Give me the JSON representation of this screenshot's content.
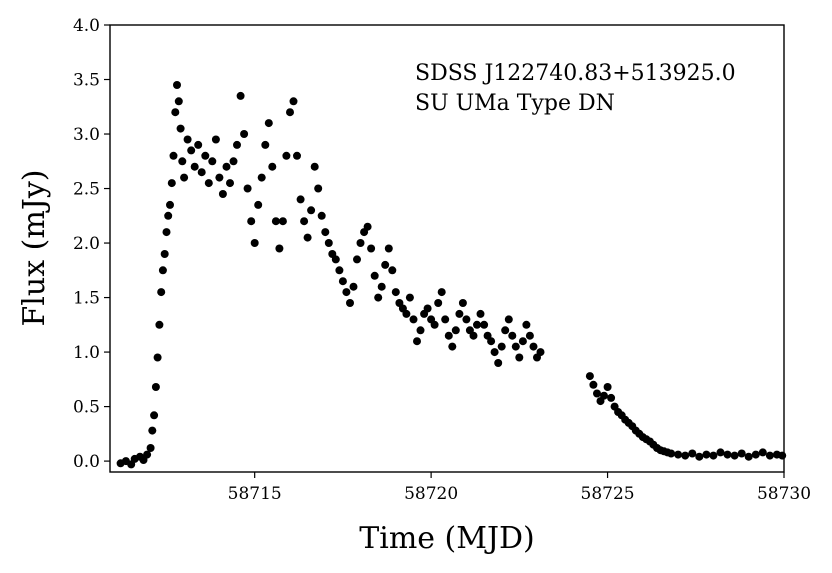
{
  "chart_data": {
    "type": "scatter",
    "title": "",
    "xlabel": "Time (MJD)",
    "ylabel": "Flux (mJy)",
    "xlim": [
      58710.9,
      58730.0
    ],
    "ylim": [
      -0.1,
      4.0
    ],
    "xticks": [
      58715,
      58720,
      58725,
      58730
    ],
    "yticks": [
      0.0,
      0.5,
      1.0,
      1.5,
      2.0,
      2.5,
      3.0,
      3.5,
      4.0
    ],
    "xtick_labels": [
      "58715",
      "58720",
      "58725",
      "58730"
    ],
    "ytick_labels": [
      "0.0",
      "0.5",
      "1.0",
      "1.5",
      "2.0",
      "2.5",
      "3.0",
      "3.5",
      "4.0"
    ],
    "grid": false,
    "annotations": [
      "SDSS J122740.83+513925.0",
      "SU UMa Type DN"
    ],
    "marker_color": "#000000",
    "points": [
      [
        58711.2,
        -0.02
      ],
      [
        58711.35,
        0.0
      ],
      [
        58711.5,
        -0.03
      ],
      [
        58711.6,
        0.02
      ],
      [
        58711.75,
        0.04
      ],
      [
        58711.85,
        0.01
      ],
      [
        58711.95,
        0.06
      ],
      [
        58712.05,
        0.12
      ],
      [
        58712.1,
        0.28
      ],
      [
        58712.15,
        0.42
      ],
      [
        58712.2,
        0.68
      ],
      [
        58712.25,
        0.95
      ],
      [
        58712.3,
        1.25
      ],
      [
        58712.35,
        1.55
      ],
      [
        58712.4,
        1.75
      ],
      [
        58712.45,
        1.9
      ],
      [
        58712.5,
        2.1
      ],
      [
        58712.55,
        2.25
      ],
      [
        58712.6,
        2.35
      ],
      [
        58712.65,
        2.55
      ],
      [
        58712.7,
        2.8
      ],
      [
        58712.75,
        3.2
      ],
      [
        58712.8,
        3.45
      ],
      [
        58712.85,
        3.3
      ],
      [
        58712.9,
        3.05
      ],
      [
        58712.95,
        2.75
      ],
      [
        58713.0,
        2.6
      ],
      [
        58713.1,
        2.95
      ],
      [
        58713.2,
        2.85
      ],
      [
        58713.3,
        2.7
      ],
      [
        58713.4,
        2.9
      ],
      [
        58713.5,
        2.65
      ],
      [
        58713.6,
        2.8
      ],
      [
        58713.7,
        2.55
      ],
      [
        58713.8,
        2.75
      ],
      [
        58713.9,
        2.95
      ],
      [
        58714.0,
        2.6
      ],
      [
        58714.1,
        2.45
      ],
      [
        58714.2,
        2.7
      ],
      [
        58714.3,
        2.55
      ],
      [
        58714.4,
        2.75
      ],
      [
        58714.5,
        2.9
      ],
      [
        58714.6,
        3.35
      ],
      [
        58714.7,
        3.0
      ],
      [
        58714.8,
        2.5
      ],
      [
        58714.9,
        2.2
      ],
      [
        58715.0,
        2.0
      ],
      [
        58715.1,
        2.35
      ],
      [
        58715.2,
        2.6
      ],
      [
        58715.3,
        2.9
      ],
      [
        58715.4,
        3.1
      ],
      [
        58715.5,
        2.7
      ],
      [
        58715.6,
        2.2
      ],
      [
        58715.7,
        1.95
      ],
      [
        58715.8,
        2.2
      ],
      [
        58715.9,
        2.8
      ],
      [
        58716.0,
        3.2
      ],
      [
        58716.1,
        3.3
      ],
      [
        58716.2,
        2.8
      ],
      [
        58716.3,
        2.4
      ],
      [
        58716.4,
        2.2
      ],
      [
        58716.5,
        2.05
      ],
      [
        58716.6,
        2.3
      ],
      [
        58716.7,
        2.7
      ],
      [
        58716.8,
        2.5
      ],
      [
        58716.9,
        2.25
      ],
      [
        58717.0,
        2.1
      ],
      [
        58717.1,
        2.0
      ],
      [
        58717.2,
        1.9
      ],
      [
        58717.3,
        1.85
      ],
      [
        58717.4,
        1.75
      ],
      [
        58717.5,
        1.65
      ],
      [
        58717.6,
        1.55
      ],
      [
        58717.7,
        1.45
      ],
      [
        58717.8,
        1.6
      ],
      [
        58717.9,
        1.85
      ],
      [
        58718.0,
        2.0
      ],
      [
        58718.1,
        2.1
      ],
      [
        58718.2,
        2.15
      ],
      [
        58718.3,
        1.95
      ],
      [
        58718.4,
        1.7
      ],
      [
        58718.5,
        1.5
      ],
      [
        58718.6,
        1.6
      ],
      [
        58718.7,
        1.8
      ],
      [
        58718.8,
        1.95
      ],
      [
        58718.9,
        1.75
      ],
      [
        58719.0,
        1.55
      ],
      [
        58719.1,
        1.45
      ],
      [
        58719.2,
        1.4
      ],
      [
        58719.3,
        1.35
      ],
      [
        58719.4,
        1.5
      ],
      [
        58719.5,
        1.3
      ],
      [
        58719.6,
        1.1
      ],
      [
        58719.7,
        1.2
      ],
      [
        58719.8,
        1.35
      ],
      [
        58719.9,
        1.4
      ],
      [
        58720.0,
        1.3
      ],
      [
        58720.1,
        1.25
      ],
      [
        58720.2,
        1.45
      ],
      [
        58720.3,
        1.55
      ],
      [
        58720.4,
        1.3
      ],
      [
        58720.5,
        1.15
      ],
      [
        58720.6,
        1.05
      ],
      [
        58720.7,
        1.2
      ],
      [
        58720.8,
        1.35
      ],
      [
        58720.9,
        1.45
      ],
      [
        58721.0,
        1.3
      ],
      [
        58721.1,
        1.2
      ],
      [
        58721.2,
        1.15
      ],
      [
        58721.3,
        1.25
      ],
      [
        58721.4,
        1.35
      ],
      [
        58721.5,
        1.25
      ],
      [
        58721.6,
        1.15
      ],
      [
        58721.7,
        1.1
      ],
      [
        58721.8,
        1.0
      ],
      [
        58721.9,
        0.9
      ],
      [
        58722.0,
        1.05
      ],
      [
        58722.1,
        1.2
      ],
      [
        58722.2,
        1.3
      ],
      [
        58722.3,
        1.15
      ],
      [
        58722.4,
        1.05
      ],
      [
        58722.5,
        0.95
      ],
      [
        58722.6,
        1.1
      ],
      [
        58722.7,
        1.25
      ],
      [
        58722.8,
        1.15
      ],
      [
        58722.9,
        1.05
      ],
      [
        58723.0,
        0.95
      ],
      [
        58723.1,
        1.0
      ],
      [
        58724.5,
        0.78
      ],
      [
        58724.6,
        0.7
      ],
      [
        58724.7,
        0.62
      ],
      [
        58724.8,
        0.55
      ],
      [
        58724.9,
        0.6
      ],
      [
        58725.0,
        0.68
      ],
      [
        58725.1,
        0.58
      ],
      [
        58725.2,
        0.5
      ],
      [
        58725.3,
        0.45
      ],
      [
        58725.4,
        0.42
      ],
      [
        58725.5,
        0.38
      ],
      [
        58725.6,
        0.35
      ],
      [
        58725.7,
        0.32
      ],
      [
        58725.8,
        0.28
      ],
      [
        58725.9,
        0.25
      ],
      [
        58726.0,
        0.22
      ],
      [
        58726.1,
        0.2
      ],
      [
        58726.2,
        0.18
      ],
      [
        58726.3,
        0.15
      ],
      [
        58726.4,
        0.12
      ],
      [
        58726.5,
        0.1
      ],
      [
        58726.6,
        0.09
      ],
      [
        58726.7,
        0.08
      ],
      [
        58726.8,
        0.07
      ],
      [
        58727.0,
        0.06
      ],
      [
        58727.2,
        0.05
      ],
      [
        58727.4,
        0.07
      ],
      [
        58727.6,
        0.04
      ],
      [
        58727.8,
        0.06
      ],
      [
        58728.0,
        0.05
      ],
      [
        58728.2,
        0.08
      ],
      [
        58728.4,
        0.06
      ],
      [
        58728.6,
        0.05
      ],
      [
        58728.8,
        0.07
      ],
      [
        58729.0,
        0.04
      ],
      [
        58729.2,
        0.06
      ],
      [
        58729.4,
        0.08
      ],
      [
        58729.6,
        0.05
      ],
      [
        58729.8,
        0.06
      ],
      [
        58729.95,
        0.05
      ]
    ]
  }
}
